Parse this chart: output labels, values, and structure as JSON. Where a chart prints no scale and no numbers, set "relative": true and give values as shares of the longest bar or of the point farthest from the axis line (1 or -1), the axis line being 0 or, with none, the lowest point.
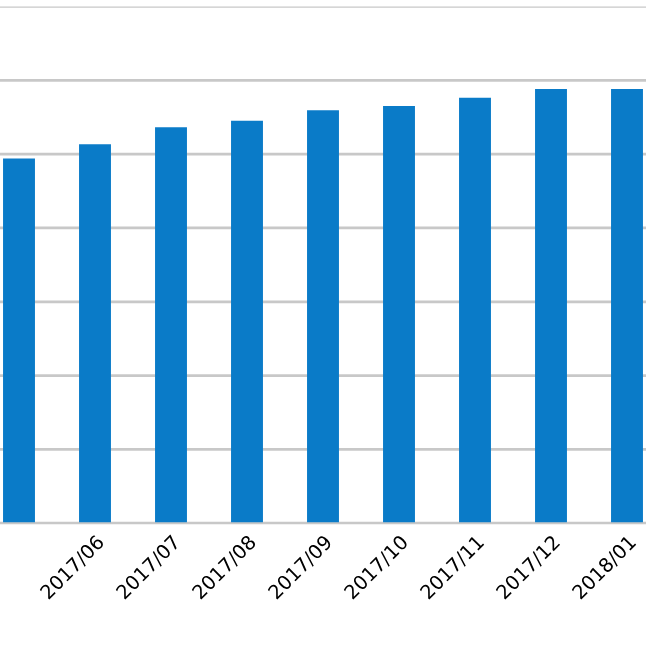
{
  "chart_data": {
    "type": "bar",
    "relative": true,
    "categories": [
      null,
      "2017/06",
      "2017/07",
      "2017/08",
      "2017/09",
      "2017/10",
      "2017/11",
      "2017/12",
      "2018/01"
    ],
    "values": [
      0.84,
      0.873,
      0.912,
      0.927,
      0.951,
      0.961,
      0.98,
      1,
      1
    ],
    "color": "#0a7bc8",
    "grid": "y"
  }
}
